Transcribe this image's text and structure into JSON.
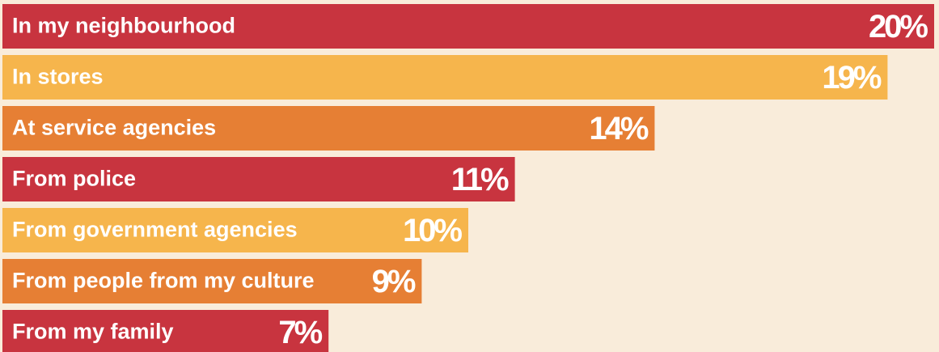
{
  "chart_data": {
    "type": "barh",
    "categories": [
      "In my neighbourhood",
      "In stores",
      "At service agencies",
      "From police",
      "From government agencies",
      "From people from my culture",
      "From my family"
    ],
    "values": [
      20,
      19,
      14,
      11,
      10,
      9,
      7
    ],
    "value_labels": [
      "20%",
      "19%",
      "14%",
      "11%",
      "10%",
      "9%",
      "7%"
    ],
    "colors": [
      "#c8343f",
      "#f6b54c",
      "#e67f34",
      "#c8343f",
      "#f6b54c",
      "#e67f34",
      "#c8343f"
    ],
    "xlim": [
      0,
      20
    ]
  }
}
